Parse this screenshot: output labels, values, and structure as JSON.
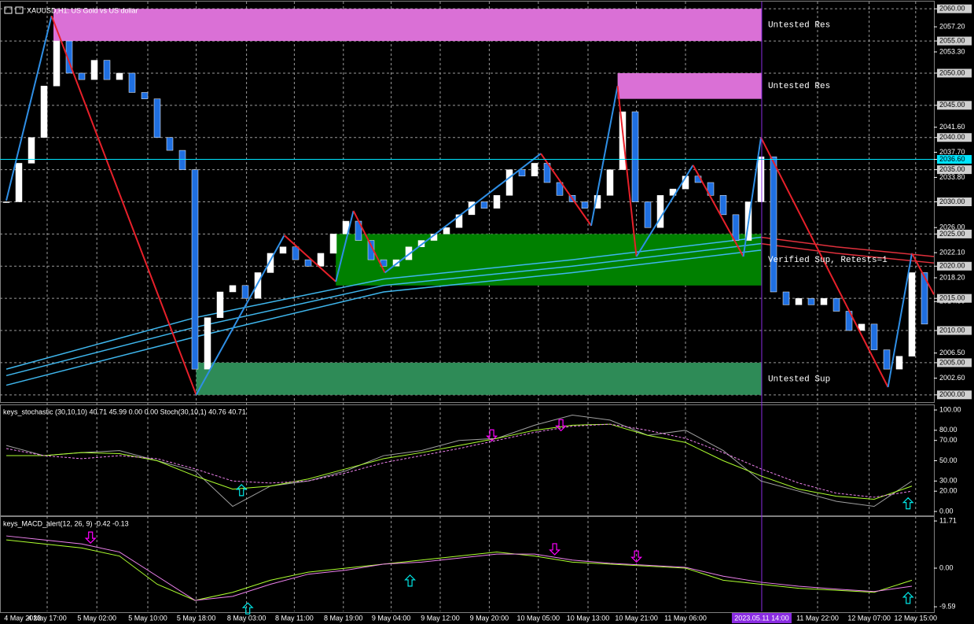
{
  "title": "XAUUSD,H1:  US Gold vs US dollar",
  "chart_data": [
    {
      "type": "candlestick",
      "xlim": [
        -0.5,
        73.75
      ],
      "xticks": [
        {
          "value": 1.3,
          "label": "4 May 2023"
        },
        {
          "value": 3.25,
          "label": "4 May 17:00"
        },
        {
          "value": 7.2,
          "label": "5 May 02:00"
        },
        {
          "value": 11.25,
          "label": "5 May 10:00"
        },
        {
          "value": 15.1,
          "label": "5 May 18:00"
        },
        {
          "value": 19.1,
          "label": "8 May 03:00"
        },
        {
          "value": 22.9,
          "label": "8 May 11:00"
        },
        {
          "value": 26.8,
          "label": "8 May 19:00"
        },
        {
          "value": 30.6,
          "label": "9 May 04:00"
        },
        {
          "value": 34.5,
          "label": "9 May 12:00"
        },
        {
          "value": 38.4,
          "label": "9 May 20:00"
        },
        {
          "value": 42.3,
          "label": "10 May 05:00"
        },
        {
          "value": 46.25,
          "label": "10 May 13:00"
        },
        {
          "value": 50.1,
          "label": "10 May 21:00"
        },
        {
          "value": 54.0,
          "label": "11 May 06:00"
        },
        {
          "value": 64.5,
          "label": "11 May 22:00"
        },
        {
          "value": 68.6,
          "label": "12 May 07:00"
        },
        {
          "value": 72.3,
          "label": "12 May 15:00"
        }
      ],
      "marker": {
        "value": 60.06,
        "label": "2023.05.11 14:00"
      },
      "ylim": [
        1999,
        2061
      ],
      "yticks": [
        {
          "value": 2060,
          "label": "2060.00"
        },
        {
          "value": 2055,
          "label": "2055.00"
        },
        {
          "value": 2050,
          "label": "2050.00"
        },
        {
          "value": 2045,
          "label": "2045.00"
        },
        {
          "value": 2040,
          "label": "2040.00"
        },
        {
          "value": 2035,
          "label": "2035.00"
        },
        {
          "value": 2030,
          "label": "2030.00"
        },
        {
          "value": 2025,
          "label": "2025.00"
        },
        {
          "value": 2020,
          "label": "2020.00"
        },
        {
          "value": 2015,
          "label": "2015.00"
        },
        {
          "value": 2010,
          "label": "2010.00"
        },
        {
          "value": 2005,
          "label": "2005.00"
        },
        {
          "value": 2000,
          "label": "2000.00"
        }
      ],
      "minor_ticks": [
        {
          "value": 2057.2,
          "label": "2057.20"
        },
        {
          "value": 2053.3,
          "label": "2053.30"
        },
        {
          "value": 2041.6,
          "label": "2041.60"
        },
        {
          "value": 2037.7,
          "label": "2037.70"
        },
        {
          "value": 2033.8,
          "label": "2033.80"
        },
        {
          "value": 2026,
          "label": "2026.00"
        },
        {
          "value": 2022.1,
          "label": "2022.10"
        },
        {
          "value": 2018.2,
          "label": "2018.20"
        },
        {
          "value": 2014.5,
          "label": "2014.50"
        },
        {
          "value": 2006.5,
          "label": "2006.50"
        },
        {
          "value": 2002.6,
          "label": "2002.60"
        }
      ],
      "current_price": {
        "value": 2036.6,
        "label": "2036.60",
        "color": "#00e5ff"
      },
      "grid": true,
      "up_color": "#ffffff",
      "down_color": "#1f6fe0",
      "closes": [
        2030,
        2036,
        2040,
        2048,
        2055,
        2050,
        2049,
        2052,
        2049,
        2050,
        2047,
        2046,
        2040,
        2038,
        2035,
        2004,
        2012,
        2016,
        2017,
        2015,
        2019,
        2022,
        2023,
        2021,
        2020,
        2022,
        2025,
        2027,
        2024,
        2021,
        2020,
        2021,
        2023,
        2024,
        2025,
        2026,
        2028,
        2030,
        2029,
        2031,
        2035,
        2034,
        2036,
        2033,
        2031,
        2030,
        2029,
        2031,
        2035,
        2044,
        2030,
        2026,
        2031,
        2032,
        2034,
        2033,
        2031,
        2028,
        2024,
        2030,
        2037,
        2016,
        2014,
        2015,
        2014,
        2015,
        2013,
        2010,
        2011,
        2007,
        2004,
        2006,
        2019,
        2011
      ],
      "zones": [
        {
          "label": "Untested Res",
          "from": 3.75,
          "to": 60.06,
          "low": 2055,
          "high": 2060,
          "color": "#da70d6"
        },
        {
          "label": "Untested Res",
          "from": 48.6,
          "to": 60.06,
          "low": 2046,
          "high": 2050,
          "color": "#da70d6"
        },
        {
          "label": "Verified Sup, Retests=1",
          "from": 26.2,
          "to": 60.06,
          "low": 2017,
          "high": 2025,
          "color": "#008000"
        },
        {
          "label": "Untested Sup",
          "from": 15.1,
          "to": 60.06,
          "low": 2000,
          "high": 2005,
          "color": "#2e8b57"
        }
      ],
      "zigzag": {
        "x": [
          0,
          3.6,
          15.1,
          22.1,
          26.2,
          27.6,
          30.1,
          42.5,
          46.5,
          48.6,
          50.1,
          54.6,
          58.6,
          60,
          70.1,
          72,
          73.75
        ],
        "values": [
          2030.2,
          2058.9,
          2000,
          2024.8,
          2017.6,
          2028.6,
          2019,
          2037.5,
          2026.3,
          2048,
          2021.5,
          2035.7,
          2021.5,
          2040,
          2001.2,
          2022,
          2015.6
        ],
        "up_color": "#2f8fe6",
        "down_color": "#e8202a"
      },
      "moving_averages": [
        {
          "color": "#3fb7ee",
          "x": [
            0,
            15,
            30,
            45,
            60
          ],
          "values": [
            2004,
            2012,
            2018,
            2021,
            2024.5
          ]
        },
        {
          "color": "#3fb7ee",
          "x": [
            0,
            15,
            30,
            45,
            60
          ],
          "values": [
            2003,
            2010.5,
            2017,
            2020,
            2023.5
          ]
        },
        {
          "color": "#3fb7ee",
          "x": [
            0,
            15,
            30,
            45,
            60
          ],
          "values": [
            2001.5,
            2009,
            2016,
            2019,
            2022.5
          ]
        },
        {
          "color": "#e0303c",
          "x": [
            60,
            66,
            73.75
          ],
          "values": [
            2024.5,
            2023,
            2021.5
          ]
        },
        {
          "color": "#e0303c",
          "x": [
            60,
            66,
            73.75
          ],
          "values": [
            2023.5,
            2022,
            2020.5
          ]
        }
      ]
    },
    {
      "type": "line",
      "title": "keys_stochastic (30,10,10) 40.71 45.99 0.00 0.00 Stoch(30,10,1) 40.76 40.71",
      "x": [
        0,
        3,
        6,
        9,
        12,
        15,
        18,
        21,
        24,
        27,
        30,
        33,
        36,
        39,
        42,
        45,
        48,
        51,
        54,
        57,
        60,
        63,
        66,
        69,
        72
      ],
      "series": [
        {
          "color": "#a0a0a0",
          "values": [
            65,
            55,
            58,
            60,
            50,
            40,
            5,
            25,
            30,
            40,
            55,
            60,
            70,
            72,
            85,
            95,
            90,
            75,
            80,
            60,
            30,
            20,
            10,
            5,
            30
          ]
        },
        {
          "color": "#adff2f",
          "values": [
            55,
            55,
            58,
            57,
            50,
            35,
            22,
            25,
            32,
            42,
            52,
            58,
            65,
            72,
            80,
            85,
            86,
            75,
            68,
            50,
            35,
            22,
            15,
            12,
            25
          ]
        },
        {
          "color": "#ee82ee",
          "dashed": true,
          "values": [
            62,
            55,
            52,
            55,
            52,
            42,
            30,
            28,
            30,
            38,
            48,
            55,
            62,
            70,
            78,
            84,
            86,
            80,
            72,
            58,
            42,
            28,
            18,
            14,
            20
          ]
        }
      ],
      "ylim": [
        -3.9,
        103.9
      ],
      "yticks": [
        {
          "value": 100,
          "label": "100.00"
        },
        {
          "value": 80,
          "label": "80.00"
        },
        {
          "value": 70,
          "label": "70.00"
        },
        {
          "value": 50,
          "label": "50.00"
        },
        {
          "value": 30,
          "label": "30.00"
        },
        {
          "value": 20,
          "label": "20.00"
        },
        {
          "value": 0,
          "label": "0.00"
        }
      ],
      "signals": [
        {
          "x": 18.7,
          "value": 21,
          "direction": "up"
        },
        {
          "x": 38.6,
          "value": 75,
          "direction": "down"
        },
        {
          "x": 44.1,
          "value": 85,
          "direction": "down"
        },
        {
          "x": 71.7,
          "value": 8,
          "direction": "up"
        }
      ]
    },
    {
      "type": "line",
      "title": "keys_MACD_alert(12, 26, 9) -0.42 -0.13",
      "x": [
        0,
        3,
        6,
        9,
        12,
        15,
        18,
        21,
        24,
        27,
        30,
        33,
        36,
        39,
        42,
        45,
        48,
        51,
        54,
        57,
        60,
        63,
        66,
        69,
        72
      ],
      "series": [
        {
          "color": "#adff2f",
          "values": [
            7,
            6,
            5,
            3,
            -4,
            -8,
            -6,
            -3,
            -1,
            0,
            1,
            2,
            3,
            4,
            3,
            1.5,
            1,
            0.5,
            0,
            -3,
            -4,
            -5,
            -5.5,
            -6,
            -3
          ]
        },
        {
          "color": "#ee82ee",
          "values": [
            8,
            7,
            6,
            4,
            -2,
            -8,
            -7,
            -4,
            -1.5,
            -0.5,
            1,
            1.5,
            2.5,
            3.5,
            3.5,
            2,
            1.2,
            0.7,
            0.2,
            -2,
            -3.5,
            -4.5,
            -5.2,
            -5.8,
            -4.5
          ]
        }
      ],
      "ylim": [
        -10.74,
        12.7
      ],
      "yticks": [
        {
          "value": 11.71,
          "label": "11.71"
        },
        {
          "value": 0,
          "label": "0.00"
        },
        {
          "value": -9.59,
          "label": "-9.59"
        }
      ],
      "signals": [
        {
          "x": 6.7,
          "value": 7.6,
          "direction": "down"
        },
        {
          "x": 19.2,
          "value": -10,
          "direction": "up"
        },
        {
          "x": 32.1,
          "value": -3.1,
          "direction": "up"
        },
        {
          "x": 43.6,
          "value": 4.7,
          "direction": "down"
        },
        {
          "x": 50.1,
          "value": 2.9,
          "direction": "down"
        },
        {
          "x": 71.7,
          "value": -7.4,
          "direction": "up"
        }
      ]
    }
  ]
}
